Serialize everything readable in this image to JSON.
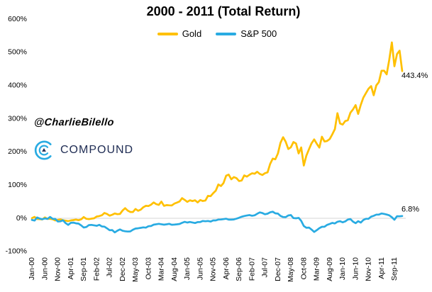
{
  "title": "2000 - 2011 (Total Return)",
  "watermark": {
    "handle": "@CharlieBilello",
    "brand": "COMPOUND"
  },
  "colors": {
    "gold": "#FFC000",
    "sp500": "#29ABE2",
    "brand_navy": "#202D54",
    "brand_blue": "#29ABE2",
    "zero_gridline": "#D6D6D6",
    "text": "#000000"
  },
  "chart_data": {
    "type": "line",
    "title": "2000 - 2011 (Total Return)",
    "xlabel": "",
    "ylabel": "",
    "ylim": [
      -100,
      600
    ],
    "y_tick_labels": [
      "600%",
      "500%",
      "400%",
      "300%",
      "200%",
      "100%",
      "0%",
      "-100%"
    ],
    "y_tick_values": [
      600,
      500,
      400,
      300,
      200,
      100,
      0,
      -100
    ],
    "grid": "horizontal line at 0% only",
    "legend_position": "top-center",
    "x_unit": "monthly, Jan-2000 through Dec-2011",
    "x_tick_labels": [
      "Jan-00",
      "Jun-00",
      "Nov-00",
      "Apr-01",
      "Sep-01",
      "Feb-02",
      "Jul-02",
      "Dec-02",
      "May-03",
      "Oct-03",
      "Mar-04",
      "Aug-04",
      "Jan-05",
      "Jun-05",
      "Nov-05",
      "Apr-06",
      "Sep-06",
      "Feb-07",
      "Jul-07",
      "Dec-07",
      "May-08",
      "Oct-08",
      "Mar-09",
      "Aug-09",
      "Jan-10",
      "Jun-10",
      "Nov-10",
      "Apr-11",
      "Sep-11"
    ],
    "x_tick_month_interval": 5,
    "series": [
      {
        "name": "Gold",
        "color": "#FFC000",
        "end_label": "443.4%",
        "values": [
          0.4,
          4.3,
          -2.1,
          -2.5,
          -3.5,
          2.5,
          -1.8,
          -1.8,
          -2.8,
          -6.4,
          -4.6,
          -3.5,
          -5.7,
          -7.1,
          -8.5,
          -6.4,
          -5.3,
          -3.9,
          -5.7,
          -3.2,
          3.9,
          -1.4,
          -2.5,
          -1.1,
          0.0,
          5.3,
          6.7,
          9.2,
          16.0,
          13.1,
          7.8,
          10.6,
          14.5,
          12.4,
          13.1,
          23.4,
          30.5,
          23.0,
          19.1,
          19.1,
          28.0,
          22.7,
          25.9,
          33.3,
          37.6,
          36.9,
          41.1,
          47.9,
          42.6,
          40.4,
          50.4,
          37.6,
          39.7,
          39.0,
          38.7,
          44.3,
          47.2,
          50.7,
          60.6,
          55.3,
          49.6,
          54.3,
          51.8,
          54.3,
          47.9,
          55.0,
          52.1,
          53.5,
          67.7,
          66.7,
          75.5,
          83.3,
          101.8,
          97.2,
          106.4,
          128.4,
          131.6,
          117.4,
          124.1,
          120.9,
          112.4,
          113.8,
          129.1,
          125.5,
          130.9,
          135.5,
          134.4,
          140.1,
          133.7,
          130.5,
          135.8,
          138.3,
          163.5,
          179.8,
          177.7,
          195.4,
          227.3,
          244.3,
          230.9,
          208.9,
          213.8,
          229.8,
          225.5,
          195.4,
          213.5,
          158.9,
          188.7,
          208.2,
          225.9,
          237.6,
          224.8,
          213.1,
          245.7,
          231.2,
          233.0,
          238.7,
          252.8,
          268.8,
          316.7,
          285.5,
          282.3,
          292.9,
          295.4,
          318.1,
          328.0,
          341.1,
          314.5,
          341.8,
          363.5,
          377.3,
          390.4,
          398.2,
          370.6,
          400.4,
          410.3,
          444.3,
          444.7,
          433.7,
          477.3,
          530.0,
          458.0,
          495.0,
          505.0,
          443.4
        ]
      },
      {
        "name": "S&P 500",
        "color": "#29ABE2",
        "end_label": "6.8%",
        "values": [
          -5.0,
          -6.8,
          2.3,
          -0.8,
          -2.9,
          -0.5,
          -2.0,
          4.1,
          -1.5,
          -1.9,
          -9.6,
          -9.1,
          -5.9,
          -14.5,
          -19.9,
          -13.6,
          -13.0,
          -15.1,
          -16.0,
          -21.3,
          -27.7,
          -26.3,
          -20.6,
          -19.9,
          -21.1,
          -22.6,
          -19.6,
          -24.5,
          -25.1,
          -30.4,
          -35.8,
          -35.4,
          -42.4,
          -37.3,
          -33.6,
          -37.5,
          -39.1,
          -40.0,
          -39.4,
          -34.4,
          -30.9,
          -30.0,
          -28.8,
          -27.3,
          -28.1,
          -24.0,
          -23.3,
          -19.3,
          -17.9,
          -16.7,
          -18.0,
          -19.3,
          -18.2,
          -16.6,
          -19.4,
          -19.1,
          -18.2,
          -17.0,
          -13.6,
          -10.7,
          -12.9,
          -11.0,
          -12.6,
          -14.3,
          -11.5,
          -11.4,
          -8.1,
          -9.0,
          -8.2,
          -9.8,
          -6.3,
          -6.3,
          -3.9,
          -3.6,
          -2.5,
          -1.2,
          -4.1,
          -4.0,
          -3.4,
          -1.1,
          1.5,
          4.8,
          6.8,
          8.3,
          9.9,
          7.7,
          8.9,
          13.7,
          17.7,
          15.7,
          12.1,
          13.8,
          18.0,
          19.9,
          14.9,
          14.1,
          7.3,
          3.8,
          3.4,
          8.5,
          9.9,
          0.7,
          -0.1,
          1.3,
          -7.7,
          -23.2,
          -28.7,
          -27.9,
          -34.0,
          -41.0,
          -35.8,
          -29.6,
          -25.7,
          -25.5,
          -19.9,
          -17.0,
          -13.9,
          -15.5,
          -10.5,
          -8.8,
          -12.1,
          -9.3,
          -3.9,
          -2.3,
          -10.1,
          -14.8,
          -8.8,
          -12.9,
          -5.2,
          -1.6,
          -1.6,
          5.0,
          7.5,
          11.2,
          11.2,
          14.5,
          13.2,
          11.3,
          9.0,
          3.1,
          -4.2,
          6.2,
          6.0,
          6.8
        ]
      }
    ]
  }
}
